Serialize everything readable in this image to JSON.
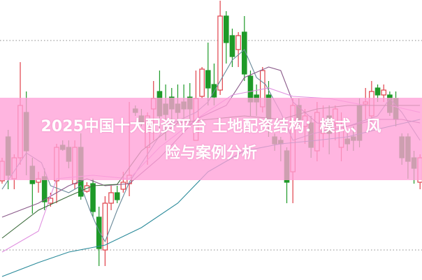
{
  "title": "2025中国十大配资平台 土地配资结构：模式、风险与案例分析",
  "title_lines": [
    "2025中国十大配资平台 土地配资结构：模式、风",
    "险与案例分析"
  ],
  "colors": {
    "up": "#e0404a",
    "down": "#1e9a28",
    "banner": "#ffa0d7",
    "ma5": "#6a8a9a",
    "ma10": "#8a5a8a",
    "ma20": "#e090e0",
    "ma30": "#3a6a3a",
    "ma60": "#2a8a9a",
    "grid": "#888888"
  },
  "chart_data": {
    "type": "candlestick",
    "title": "",
    "xlabel": "",
    "ylabel": "",
    "ylim": [
      0,
      401
    ],
    "grid": "dotted horizontal lines",
    "gridlines": [
      343,
      43
    ],
    "candles_ohlc": [
      [
        142,
        175,
        138,
        170
      ],
      [
        205,
        215,
        130,
        150
      ],
      [
        145,
        180,
        130,
        175
      ],
      [
        175,
        312,
        165,
        250
      ],
      [
        240,
        270,
        150,
        185
      ],
      [
        163,
        175,
        95,
        138
      ],
      [
        140,
        155,
        125,
        145
      ],
      [
        148,
        160,
        100,
        112
      ],
      [
        110,
        125,
        105,
        117
      ],
      [
        142,
        195,
        110,
        190
      ],
      [
        193,
        200,
        185,
        187
      ],
      [
        190,
        200,
        160,
        170
      ],
      [
        138,
        200,
        130,
        190
      ],
      [
        190,
        210,
        115,
        120
      ],
      [
        127,
        140,
        125,
        135
      ],
      [
        138,
        145,
        90,
        98
      ],
      [
        90,
        105,
        20,
        45
      ],
      [
        43,
        120,
        20,
        110
      ],
      [
        110,
        135,
        100,
        125
      ],
      [
        125,
        135,
        110,
        115
      ],
      [
        130,
        155,
        125,
        140
      ],
      [
        138,
        255,
        120,
        150
      ],
      [
        245,
        250,
        235,
        240
      ],
      [
        235,
        245,
        220,
        225
      ],
      [
        190,
        240,
        165,
        235
      ],
      [
        245,
        285,
        200,
        260
      ],
      [
        270,
        300,
        215,
        235
      ],
      [
        252,
        280,
        200,
        237
      ],
      [
        262,
        275,
        225,
        245
      ],
      [
        252,
        280,
        225,
        240
      ],
      [
        255,
        280,
        230,
        245
      ],
      [
        262,
        282,
        220,
        245
      ],
      [
        200,
        300,
        200,
        260
      ],
      [
        263,
        305,
        260,
        302
      ],
      [
        300,
        340,
        250,
        275
      ],
      [
        280,
        310,
        250,
        262
      ],
      [
        272,
        400,
        265,
        378
      ],
      [
        378,
        385,
        310,
        340
      ],
      [
        350,
        360,
        305,
        320
      ],
      [
        330,
        355,
        305,
        350
      ],
      [
        355,
        378,
        285,
        295
      ],
      [
        292,
        300,
        235,
        255
      ],
      [
        265,
        280,
        235,
        255
      ],
      [
        248,
        305,
        240,
        300
      ],
      [
        265,
        285,
        205,
        230
      ],
      [
        205,
        210,
        185,
        195
      ],
      [
        200,
        205,
        170,
        195
      ],
      [
        185,
        190,
        110,
        140
      ],
      [
        155,
        260,
        110,
        250
      ],
      [
        250,
        260,
        220,
        230
      ],
      [
        220,
        245,
        195,
        235
      ],
      [
        225,
        235,
        175,
        190
      ],
      [
        185,
        255,
        170,
        240
      ],
      [
        210,
        250,
        190,
        220
      ],
      [
        235,
        250,
        180,
        210
      ],
      [
        225,
        250,
        200,
        245
      ],
      [
        190,
        240,
        170,
        222
      ],
      [
        202,
        210,
        185,
        195
      ],
      [
        205,
        220,
        185,
        200
      ],
      [
        250,
        260,
        190,
        200
      ],
      [
        252,
        275,
        230,
        255
      ],
      [
        235,
        285,
        225,
        270
      ],
      [
        275,
        280,
        255,
        265
      ],
      [
        265,
        280,
        255,
        272
      ],
      [
        265,
        270,
        235,
        240
      ],
      [
        260,
        270,
        220,
        230
      ],
      [
        205,
        210,
        165,
        175
      ],
      [
        205,
        210,
        145,
        170
      ],
      [
        175,
        185,
        138,
        160
      ],
      [
        140,
        180,
        130,
        175
      ]
    ],
    "moving_averages": [
      {
        "key": "ma5",
        "points": [
          [
            0,
            130
          ],
          [
            4,
            182
          ],
          [
            6.5,
            168
          ],
          [
            8,
            135
          ],
          [
            11,
            125
          ],
          [
            13,
            135
          ],
          [
            14.5,
            100
          ],
          [
            16,
            70
          ],
          [
            17,
            55
          ],
          [
            19,
            100
          ],
          [
            21,
            140
          ],
          [
            24,
            180
          ],
          [
            27,
            220
          ],
          [
            32,
            240
          ],
          [
            34,
            255
          ],
          [
            38,
            315
          ],
          [
            40,
            330
          ],
          [
            42,
            290
          ],
          [
            43.5,
            280
          ],
          [
            46,
            240
          ],
          [
            48,
            200
          ],
          [
            51.5,
            210
          ],
          [
            57,
            220
          ],
          [
            62,
            235
          ],
          [
            64,
            260
          ],
          [
            66,
            240
          ],
          [
            69,
            200
          ]
        ]
      },
      {
        "key": "ma10",
        "points": [
          [
            0,
            90
          ],
          [
            6,
            110
          ],
          [
            11,
            135
          ],
          [
            14,
            145
          ],
          [
            17,
            135
          ],
          [
            21,
            138
          ],
          [
            26,
            175
          ],
          [
            32,
            230
          ],
          [
            37,
            250
          ],
          [
            40,
            290
          ],
          [
            44,
            305
          ],
          [
            46,
            300
          ],
          [
            48,
            255
          ],
          [
            52,
            225
          ],
          [
            57,
            220
          ],
          [
            62,
            230
          ],
          [
            66,
            230
          ],
          [
            69,
            225
          ]
        ]
      },
      {
        "key": "ma20",
        "points": [
          [
            0,
            40
          ],
          [
            6,
            70
          ],
          [
            9,
            145
          ],
          [
            15,
            150
          ],
          [
            21,
            145
          ],
          [
            26,
            190
          ],
          [
            32,
            230
          ],
          [
            38,
            265
          ],
          [
            44,
            275
          ],
          [
            48,
            263
          ],
          [
            54,
            260
          ],
          [
            60,
            250
          ],
          [
            64,
            250
          ],
          [
            69,
            240
          ]
        ]
      },
      {
        "key": "ma30",
        "points": [
          [
            0,
            60
          ],
          [
            6,
            100
          ],
          [
            11,
            120
          ],
          [
            15,
            135
          ],
          [
            19,
            137
          ],
          [
            23,
            185
          ],
          [
            29,
            225
          ],
          [
            34,
            230
          ],
          [
            40,
            235
          ],
          [
            46,
            230
          ],
          [
            52,
            245
          ],
          [
            57,
            250
          ],
          [
            63,
            250
          ],
          [
            69,
            250
          ]
        ]
      },
      {
        "key": "ma60",
        "points": [
          [
            0,
            5
          ],
          [
            6,
            25
          ],
          [
            11,
            40
          ],
          [
            17,
            50
          ],
          [
            23,
            75
          ],
          [
            29,
            110
          ],
          [
            34,
            155
          ],
          [
            40,
            185
          ],
          [
            46,
            195
          ],
          [
            52,
            200
          ],
          [
            57,
            205
          ],
          [
            63,
            218
          ],
          [
            69,
            230
          ]
        ]
      }
    ]
  }
}
